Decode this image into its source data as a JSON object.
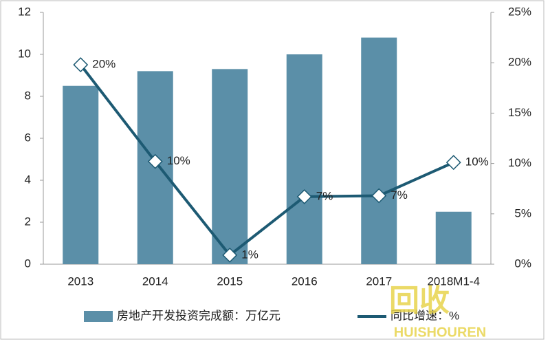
{
  "chart_data": {
    "type": "bar-line",
    "categories": [
      "2013",
      "2014",
      "2015",
      "2016",
      "2017",
      "2018M1-4"
    ],
    "series": [
      {
        "name": "房地产开发投资完成额：万亿元",
        "type": "bar",
        "color": "#5b8fa8",
        "values": [
          8.5,
          9.2,
          9.3,
          10.0,
          10.8,
          2.5
        ]
      },
      {
        "name": "同比增速：%",
        "type": "line",
        "axis": "y2",
        "color": "#1d5a73",
        "values": [
          19.8,
          10.2,
          0.9,
          6.7,
          6.8,
          10.1
        ],
        "value_labels": [
          "20%",
          "10%",
          "1%",
          "7%",
          "7%",
          "10%"
        ]
      }
    ],
    "ylim": [
      0,
      12
    ],
    "yticks": [
      0,
      2,
      4,
      6,
      8,
      10,
      12
    ],
    "y2lim": [
      0,
      25
    ],
    "y2ticks": [
      {
        "value": 0,
        "label": "0%"
      },
      {
        "value": 5,
        "label": "5%"
      },
      {
        "value": 10,
        "label": "10%"
      },
      {
        "value": 15,
        "label": "15%"
      },
      {
        "value": 20,
        "label": "20%"
      },
      {
        "value": 25,
        "label": "25%"
      }
    ],
    "watermark": [
      "回收",
      "HUISHOUREN"
    ]
  }
}
